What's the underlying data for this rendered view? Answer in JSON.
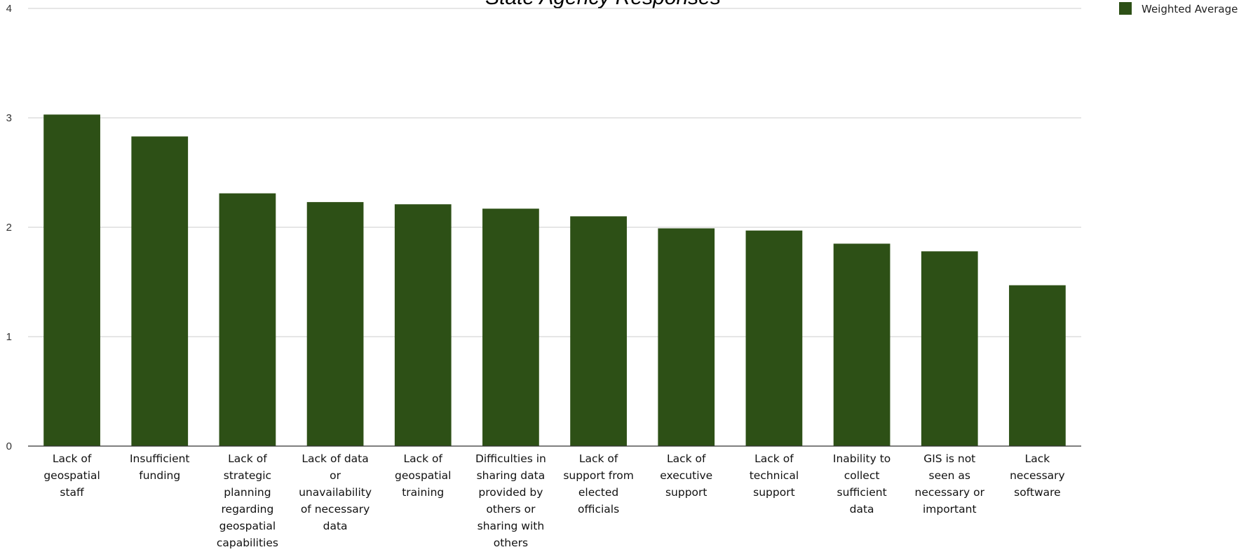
{
  "chart_data": {
    "type": "bar",
    "title": "State Agency Responses",
    "xlabel": "",
    "ylabel": "",
    "ylim": [
      0,
      4
    ],
    "yticks": [
      0,
      1,
      2,
      3,
      4
    ],
    "grid": true,
    "legend_position": "top-right",
    "categories": [
      "Lack of geospatial staff",
      "Insufficient funding",
      "Lack of strategic planning regarding geospatial capabilities",
      "Lack of data or unavailability of necessary data",
      "Lack of geospatial training",
      "Difficulties in sharing data provided by others or sharing with others",
      "Lack of support from elected officials",
      "Lack of executive support",
      "Lack of technical support",
      "Inability to collect sufficient data",
      "GIS is not seen as necessary or important",
      "Lack necessary software"
    ],
    "category_lines": [
      [
        "Lack of",
        "geospatial",
        "staff"
      ],
      [
        "Insufficient",
        "funding"
      ],
      [
        "Lack of",
        "strategic",
        "planning",
        "regarding",
        "geospatial",
        "capabilities"
      ],
      [
        "Lack of data",
        "or",
        "unavailability",
        "of necessary",
        "data"
      ],
      [
        "Lack of",
        "geospatial",
        "training"
      ],
      [
        "Difficulties in",
        "sharing data",
        "provided by",
        "others or",
        "sharing with",
        "others"
      ],
      [
        "Lack of",
        "support from",
        "elected",
        "officials"
      ],
      [
        "Lack of",
        "executive",
        "support"
      ],
      [
        "Lack of",
        "technical",
        "support"
      ],
      [
        "Inability to",
        "collect",
        "sufficient",
        "data"
      ],
      [
        "GIS is not",
        "seen as",
        "necessary or",
        "important"
      ],
      [
        "Lack",
        "necessary",
        "software"
      ]
    ],
    "series": [
      {
        "name": "Weighted Average",
        "color": "#2d5016",
        "values": [
          3.03,
          2.83,
          2.31,
          2.23,
          2.21,
          2.17,
          2.1,
          1.99,
          1.97,
          1.85,
          1.78,
          1.47
        ]
      }
    ]
  },
  "colors": {
    "bar": "#2d5016",
    "grid": "#cccccc",
    "axis": "#333333"
  }
}
